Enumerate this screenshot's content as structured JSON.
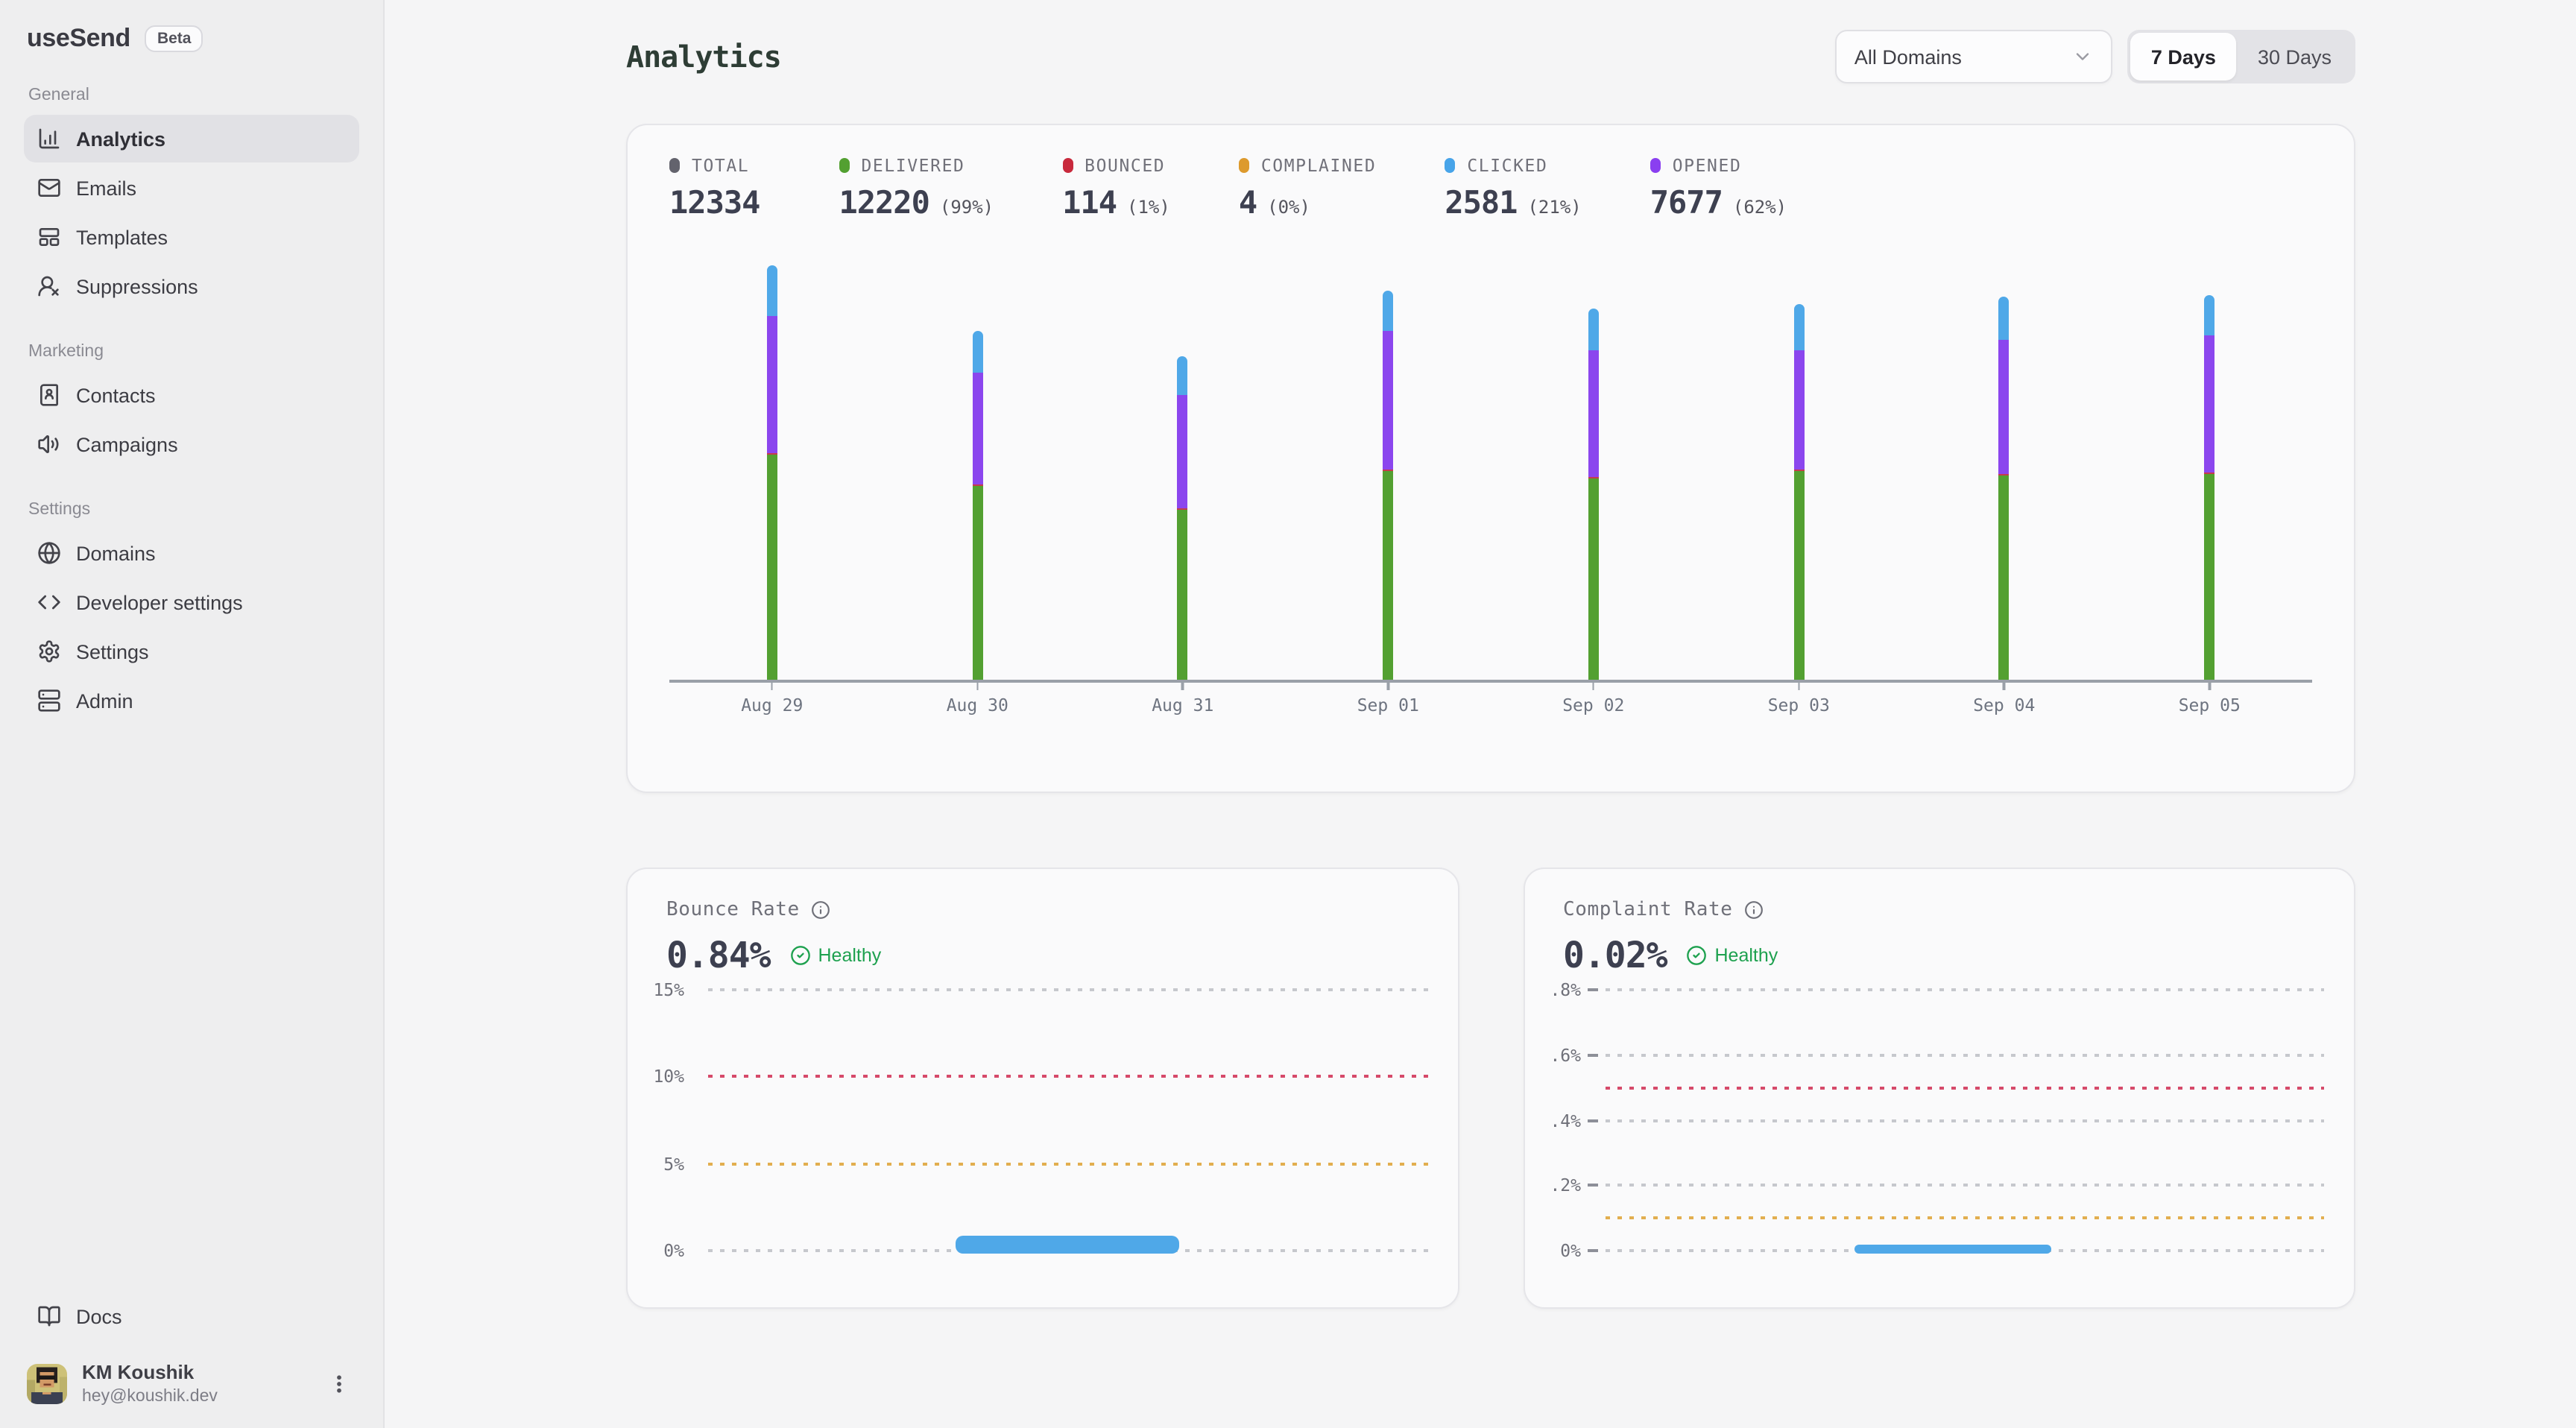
{
  "app": {
    "name": "useSend",
    "badge": "Beta"
  },
  "sidebar": {
    "sections": [
      {
        "label": "General",
        "items": [
          {
            "label": "Analytics",
            "icon": "bar-chart-icon",
            "active": true
          },
          {
            "label": "Emails",
            "icon": "mail-icon",
            "active": false
          },
          {
            "label": "Templates",
            "icon": "template-icon",
            "active": false
          },
          {
            "label": "Suppressions",
            "icon": "user-x-icon",
            "active": false
          }
        ]
      },
      {
        "label": "Marketing",
        "items": [
          {
            "label": "Contacts",
            "icon": "contact-book-icon",
            "active": false
          },
          {
            "label": "Campaigns",
            "icon": "speaker-icon",
            "active": false
          }
        ]
      },
      {
        "label": "Settings",
        "items": [
          {
            "label": "Domains",
            "icon": "globe-icon",
            "active": false
          },
          {
            "label": "Developer settings",
            "icon": "code-icon",
            "active": false
          },
          {
            "label": "Settings",
            "icon": "gear-icon",
            "active": false
          },
          {
            "label": "Admin",
            "icon": "server-icon",
            "active": false
          }
        ]
      }
    ],
    "docs": {
      "label": "Docs",
      "icon": "book-open-icon"
    },
    "user": {
      "name": "KM Koushik",
      "email": "hey@koushik.dev"
    }
  },
  "header": {
    "title": "Analytics",
    "domain_filter": "All Domains",
    "range_options": [
      "7 Days",
      "30 Days"
    ],
    "active_range": "7 Days"
  },
  "stats": [
    {
      "label": "TOTAL",
      "value": "12334",
      "pct": "",
      "color": "#63636d"
    },
    {
      "label": "DELIVERED",
      "value": "12220",
      "pct": "(99%)",
      "color": "#53a031"
    },
    {
      "label": "BOUNCED",
      "value": "114",
      "pct": "(1%)",
      "color": "#c8293c"
    },
    {
      "label": "COMPLAINED",
      "value": "4",
      "pct": "(0%)",
      "color": "#dd9a2d"
    },
    {
      "label": "CLICKED",
      "value": "2581",
      "pct": "(21%)",
      "color": "#47a4e9"
    },
    {
      "label": "OPENED",
      "value": "7677",
      "pct": "(62%)",
      "color": "#8a3ff0"
    }
  ],
  "chart_data": [
    {
      "name": "email-volume-by-day",
      "type": "bar",
      "stacked": true,
      "grid": false,
      "legend": false,
      "categories": [
        "Aug 29",
        "Aug 30",
        "Aug 31",
        "Sep 01",
        "Sep 02",
        "Sep 03",
        "Sep 04",
        "Sep 05"
      ],
      "series": [
        {
          "name": "Delivered",
          "color": "#53a031",
          "values": [
            1700,
            1467,
            1287,
            1574,
            1523,
            1574,
            1540,
            1555
          ]
        },
        {
          "name": "Bounced",
          "color": "#c63a4e",
          "values": [
            15,
            14,
            14,
            15,
            14,
            14,
            14,
            14
          ]
        },
        {
          "name": "Opened",
          "color": "#8b46ee",
          "values": [
            1039,
            834,
            851,
            1051,
            948,
            902,
            1016,
            1036
          ]
        },
        {
          "name": "Clicked",
          "color": "#4fa8e8",
          "values": [
            377,
            325,
            291,
            297,
            320,
            343,
            325,
            303
          ]
        }
      ]
    },
    {
      "name": "bounce-rate",
      "type": "area",
      "title": "Bounce Rate",
      "value": "0.84%",
      "status": "Healthy",
      "ylim": [
        0,
        16.8
      ],
      "gridlines": [
        {
          "label": "15%",
          "y": 15,
          "style": "gray",
          "tick": false
        },
        {
          "label": "10%",
          "y": 10,
          "style": "red",
          "tick": false
        },
        {
          "label": "5%",
          "y": 5,
          "style": "amber",
          "tick": false
        },
        {
          "label": "0%",
          "y": 0,
          "style": "gray",
          "tick": false
        }
      ],
      "top_gridline_y": 15,
      "series": [
        {
          "name": "bounce",
          "color": "#4fa8e8",
          "peak_pct": 0.84,
          "x_start_frac": 0.345,
          "x_end_frac": 0.655
        }
      ]
    },
    {
      "name": "complaint-rate",
      "type": "area",
      "title": "Complaint Rate",
      "value": "0.02%",
      "status": "Healthy",
      "ylim": [
        0,
        0.86
      ],
      "gridlines": [
        {
          "label": ".8%",
          "y": 0.8,
          "style": "gray",
          "tick": true
        },
        {
          "label": ".6%",
          "y": 0.6,
          "style": "gray",
          "tick": true
        },
        {
          "label": "",
          "y": 0.5,
          "style": "red",
          "tick": false
        },
        {
          "label": ".4%",
          "y": 0.4,
          "style": "gray",
          "tick": true
        },
        {
          "label": ".2%",
          "y": 0.2,
          "style": "gray",
          "tick": true
        },
        {
          "label": "",
          "y": 0.1,
          "style": "amber",
          "tick": false
        },
        {
          "label": "0%",
          "y": 0,
          "style": "gray",
          "tick": true
        }
      ],
      "top_gridline_y": 0.8,
      "series": [
        {
          "name": "complaint",
          "color": "#4fa8e8",
          "peak_pct": 0.02,
          "x_start_frac": 0.347,
          "x_end_frac": 0.62
        }
      ]
    }
  ]
}
